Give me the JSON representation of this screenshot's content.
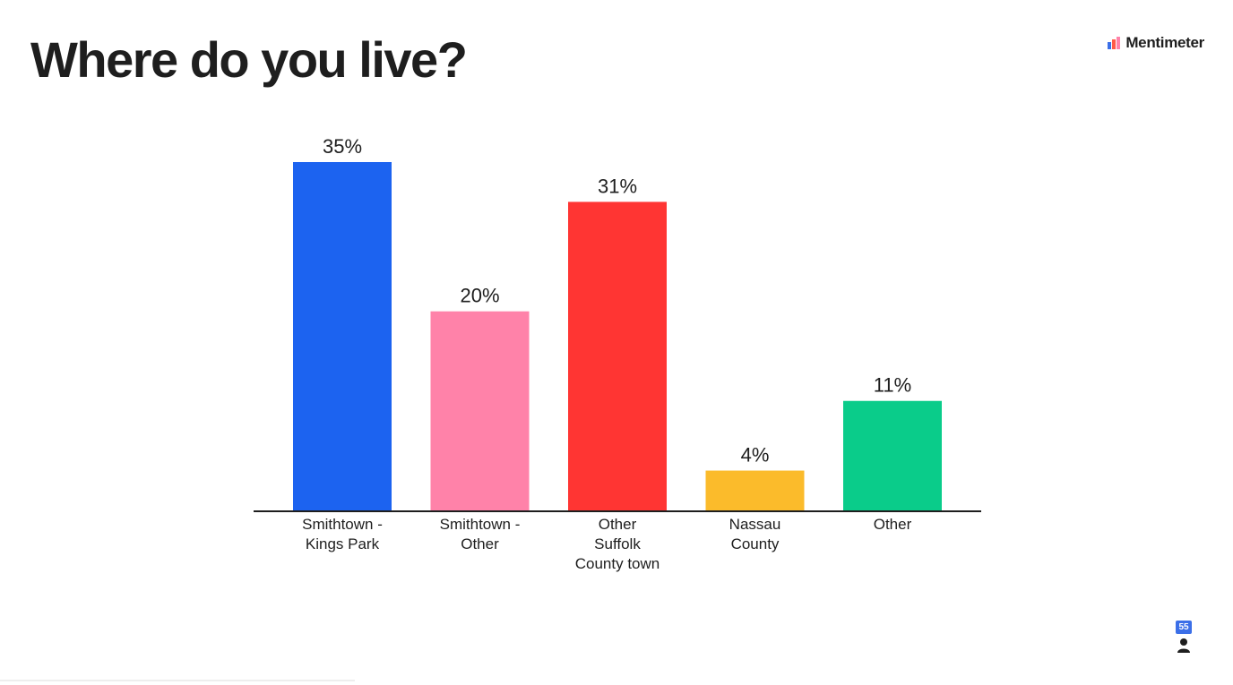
{
  "slide": {
    "title": "Where do you live?",
    "brand": {
      "name": "Mentimeter",
      "logo_icon": "mentimeter-logo-icon"
    },
    "response_count": "55",
    "response_icon": "person-icon"
  },
  "chart_data": {
    "type": "bar",
    "title": "",
    "xlabel": "",
    "ylabel": "",
    "ylim": [
      0,
      35
    ],
    "grid": false,
    "legend": "none",
    "value_suffix": "%",
    "categories": [
      [
        "Smithtown -",
        "Kings Park"
      ],
      [
        "Smithtown -",
        "Other"
      ],
      [
        "Other",
        "Suffolk",
        "County town"
      ],
      [
        "Nassau",
        "County"
      ],
      [
        "Other"
      ]
    ],
    "values": [
      35,
      20,
      31,
      4,
      11
    ],
    "colors": [
      "#1c63f0",
      "#ff82a9",
      "#ff3533",
      "#fbbb2b",
      "#0acc8a"
    ],
    "axis_color": "#1e1e1e",
    "label_color": "#1e1e1e"
  }
}
